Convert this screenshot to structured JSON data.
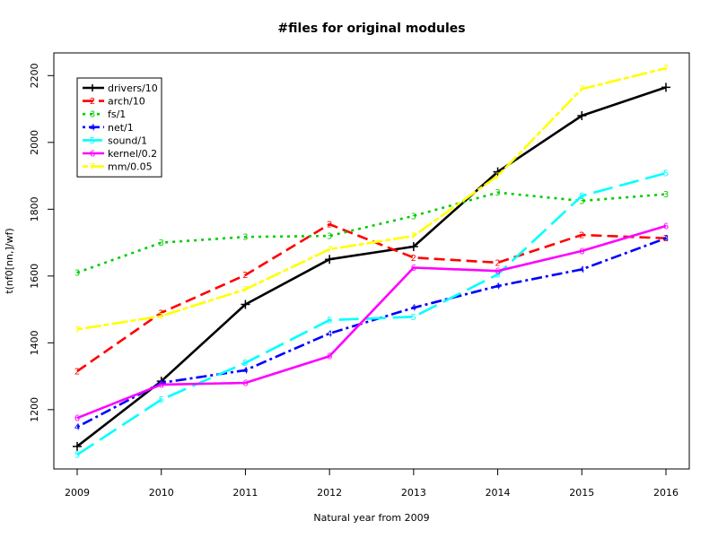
{
  "chart_data": {
    "type": "line",
    "title": "#files for original modules",
    "xlabel": "Natural year from 2009",
    "ylabel": "t(nf0[nn,]/wf)",
    "x": [
      2009,
      2010,
      2011,
      2012,
      2013,
      2014,
      2015,
      2016
    ],
    "x_tick_labels": [
      "2009",
      "2010",
      "2011",
      "2012",
      "2013",
      "2014",
      "2015",
      "2016"
    ],
    "y_ticks": [
      1200,
      1400,
      1600,
      1800,
      2000,
      2200
    ],
    "y_tick_labels": [
      "1200",
      "1400",
      "1600",
      "1800",
      "2000",
      "2200"
    ],
    "xlim": [
      2009,
      2016
    ],
    "ylim": [
      1060,
      2225
    ],
    "grid": false,
    "legend_position": "top-left",
    "series": [
      {
        "name": "drivers/10",
        "marker": "+",
        "color": "#000000",
        "dash": "solid",
        "values": [
          1090,
          1285,
          1515,
          1650,
          1688,
          1912,
          2080,
          2165
        ]
      },
      {
        "name": "arch/10",
        "marker": "2",
        "color": "#ff0000",
        "dash": "dashed",
        "values": [
          1315,
          1490,
          1603,
          1755,
          1655,
          1640,
          1723,
          1713
        ]
      },
      {
        "name": "fs/1",
        "marker": "3",
        "color": "#00cd00",
        "dash": "dotted",
        "values": [
          1610,
          1700,
          1717,
          1720,
          1780,
          1850,
          1825,
          1845
        ]
      },
      {
        "name": "net/1",
        "marker": "4",
        "color": "#0000ff",
        "dash": "dotdash",
        "values": [
          1148,
          1280,
          1318,
          1428,
          1505,
          1570,
          1620,
          1713
        ]
      },
      {
        "name": "sound/1",
        "marker": "5",
        "color": "#00ffff",
        "dash": "longdash",
        "values": [
          1065,
          1230,
          1340,
          1468,
          1478,
          1605,
          1840,
          1908
        ]
      },
      {
        "name": "kernel/0.2",
        "marker": "6",
        "color": "#ff00ff",
        "dash": "solid",
        "values": [
          1175,
          1275,
          1280,
          1360,
          1625,
          1615,
          1675,
          1750
        ]
      },
      {
        "name": "mm/0.05",
        "marker": "7",
        "color": "#ffff00",
        "dash": "twodash",
        "values": [
          1440,
          1480,
          1560,
          1680,
          1720,
          1900,
          2160,
          2222
        ]
      }
    ]
  }
}
